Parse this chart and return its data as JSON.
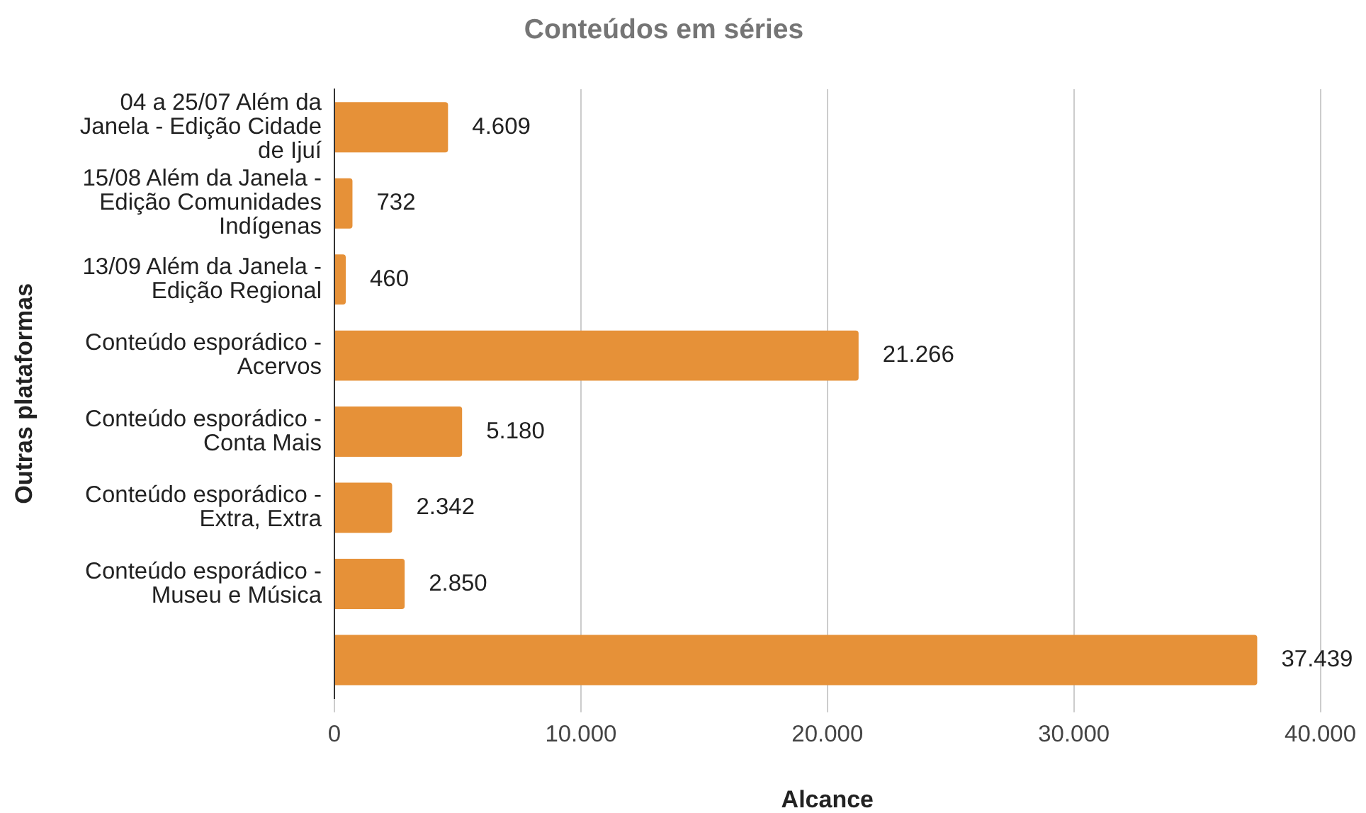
{
  "chart_data": {
    "type": "bar",
    "orientation": "horizontal",
    "title": "Conteúdos em séries",
    "xlabel": "Alcance",
    "ylabel": "Outras plataformas",
    "categories": [
      "04 a 25/07 Além da Janela - Edição Cidade de Ijuí",
      "15/08 Além da Janela - Edição Comunidades Indígenas",
      "13/09 Além da Janela - Edição Regional",
      "Conteúdo esporádico - Acervos",
      "Conteúdo esporádico - Conta Mais",
      "Conteúdo esporádico - Extra, Extra",
      "Conteúdo esporádico - Museu e Música",
      null
    ],
    "values": [
      4609,
      732,
      460,
      21266,
      5180,
      2342,
      2850,
      37439
    ],
    "value_labels": [
      "4.609",
      "732",
      "460",
      "21.266",
      "5.180",
      "2.342",
      "2.850",
      "37.439"
    ],
    "color": "#e69138",
    "xlim": [
      0,
      40000
    ],
    "xticks": [
      0,
      {
        "value": 10000,
        "label": "10.000"
      },
      {
        "value": 20000,
        "label": "20.000"
      },
      {
        "value": 30000,
        "label": "30.000"
      },
      {
        "value": 40000,
        "label": "40.000"
      }
    ],
    "grid": "x"
  }
}
